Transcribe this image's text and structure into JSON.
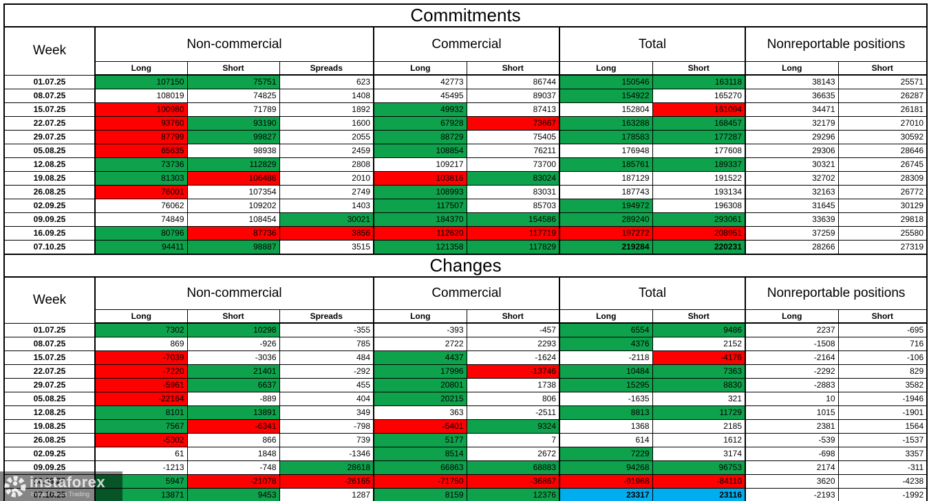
{
  "colors": {
    "green": "#0FA24C",
    "red": "#FF0000",
    "blue": "#00AEEF",
    "grid": "#000000",
    "background": "#FFFFFF"
  },
  "columns": {
    "week_label": "Week",
    "groups": [
      {
        "label": "Non-commercial",
        "subs": [
          "Long",
          "Short",
          "Spreads"
        ]
      },
      {
        "label": "Commercial",
        "subs": [
          "Long",
          "Short"
        ]
      },
      {
        "label": "Total",
        "subs": [
          "Long",
          "Short"
        ]
      },
      {
        "label": "Nonreportable positions",
        "subs": [
          "Long",
          "Short"
        ]
      }
    ]
  },
  "chart_data": [
    {
      "type": "table",
      "title": "Commitments",
      "columns": [
        "Week",
        "Non-commercial Long",
        "Non-commercial Short",
        "Non-commercial Spreads",
        "Commercial Long",
        "Commercial Short",
        "Total Long",
        "Total Short",
        "Nonreportable Long",
        "Nonreportable Short"
      ],
      "highlight_legend": "cell codes: g=green fill, r=red fill, b=blue fill, third element 1 = bold",
      "rows": [
        {
          "week": "01.07.25",
          "cells": [
            [
              107150,
              "g"
            ],
            [
              75751,
              "g"
            ],
            [
              623
            ],
            [
              42773
            ],
            [
              86744
            ],
            [
              150546,
              "g"
            ],
            [
              163118,
              "g"
            ],
            [
              38143
            ],
            [
              25571
            ]
          ]
        },
        {
          "week": "08.07.25",
          "cells": [
            [
              108019
            ],
            [
              74825
            ],
            [
              1408
            ],
            [
              45495
            ],
            [
              89037
            ],
            [
              154922,
              "g"
            ],
            [
              165270
            ],
            [
              36635
            ],
            [
              26287
            ]
          ]
        },
        {
          "week": "15.07.25",
          "cells": [
            [
              100980,
              "r"
            ],
            [
              71789
            ],
            [
              1892
            ],
            [
              49932,
              "g"
            ],
            [
              87413
            ],
            [
              152804
            ],
            [
              161094,
              "r"
            ],
            [
              34471
            ],
            [
              26181
            ]
          ]
        },
        {
          "week": "22.07.25",
          "cells": [
            [
              93760,
              "r"
            ],
            [
              93190,
              "g"
            ],
            [
              1600
            ],
            [
              67928,
              "g"
            ],
            [
              73667,
              "r"
            ],
            [
              163288,
              "g"
            ],
            [
              168457,
              "g"
            ],
            [
              32179
            ],
            [
              27010
            ]
          ]
        },
        {
          "week": "29.07.25",
          "cells": [
            [
              87799,
              "r"
            ],
            [
              99827,
              "g"
            ],
            [
              2055
            ],
            [
              88729,
              "g"
            ],
            [
              75405
            ],
            [
              178583,
              "g"
            ],
            [
              177287,
              "g"
            ],
            [
              29296
            ],
            [
              30592
            ]
          ]
        },
        {
          "week": "05.08.25",
          "cells": [
            [
              65635,
              "r"
            ],
            [
              98938
            ],
            [
              2459
            ],
            [
              108854,
              "g"
            ],
            [
              76211
            ],
            [
              176948
            ],
            [
              177608
            ],
            [
              29306
            ],
            [
              28646
            ]
          ]
        },
        {
          "week": "12.08.25",
          "cells": [
            [
              73736,
              "g"
            ],
            [
              112829,
              "g"
            ],
            [
              2808
            ],
            [
              109217
            ],
            [
              73700
            ],
            [
              185761,
              "g"
            ],
            [
              189337,
              "g"
            ],
            [
              30321
            ],
            [
              26745
            ]
          ]
        },
        {
          "week": "19.08.25",
          "cells": [
            [
              81303,
              "g"
            ],
            [
              106488,
              "r"
            ],
            [
              2010
            ],
            [
              103816,
              "r"
            ],
            [
              83024,
              "g"
            ],
            [
              187129
            ],
            [
              191522
            ],
            [
              32702
            ],
            [
              28309
            ]
          ]
        },
        {
          "week": "26.08.25",
          "cells": [
            [
              76001,
              "r"
            ],
            [
              107354
            ],
            [
              2749
            ],
            [
              108993,
              "g"
            ],
            [
              83031
            ],
            [
              187743
            ],
            [
              193134
            ],
            [
              32163
            ],
            [
              26772
            ]
          ]
        },
        {
          "week": "02.09.25",
          "cells": [
            [
              76062
            ],
            [
              109202
            ],
            [
              1403
            ],
            [
              117507,
              "g"
            ],
            [
              85703
            ],
            [
              194972,
              "g"
            ],
            [
              196308
            ],
            [
              31645
            ],
            [
              30129
            ]
          ]
        },
        {
          "week": "09.09.25",
          "cells": [
            [
              74849
            ],
            [
              108454
            ],
            [
              30021,
              "g"
            ],
            [
              184370,
              "g"
            ],
            [
              154586,
              "g"
            ],
            [
              289240,
              "g"
            ],
            [
              293061,
              "g"
            ],
            [
              33639
            ],
            [
              29818
            ]
          ]
        },
        {
          "week": "16.09.25",
          "cells": [
            [
              80796,
              "g"
            ],
            [
              87736,
              "r"
            ],
            [
              3856,
              "r"
            ],
            [
              112620,
              "r"
            ],
            [
              117719,
              "r"
            ],
            [
              197272,
              "r"
            ],
            [
              208951,
              "r"
            ],
            [
              37259
            ],
            [
              25580
            ]
          ]
        },
        {
          "week": "07.10.25",
          "cells": [
            [
              94411,
              "g"
            ],
            [
              98887,
              "g"
            ],
            [
              3515
            ],
            [
              121358,
              "g"
            ],
            [
              117829,
              "g"
            ],
            [
              219284,
              "g",
              1
            ],
            [
              220231,
              "g",
              1
            ],
            [
              28266
            ],
            [
              27319
            ]
          ]
        }
      ]
    },
    {
      "type": "table",
      "title": "Changes",
      "columns": [
        "Week",
        "Non-commercial Long",
        "Non-commercial Short",
        "Non-commercial Spreads",
        "Commercial Long",
        "Commercial Short",
        "Total Long",
        "Total Short",
        "Nonreportable Long",
        "Nonreportable Short"
      ],
      "rows": [
        {
          "week": "01.07.25",
          "cells": [
            [
              7302,
              "g"
            ],
            [
              10298,
              "g"
            ],
            [
              -355
            ],
            [
              -393
            ],
            [
              -457
            ],
            [
              6554,
              "g"
            ],
            [
              9486,
              "g"
            ],
            [
              2237
            ],
            [
              -695
            ]
          ]
        },
        {
          "week": "08.07.25",
          "cells": [
            [
              869
            ],
            [
              -926
            ],
            [
              785
            ],
            [
              2722
            ],
            [
              2293
            ],
            [
              4376,
              "g"
            ],
            [
              2152
            ],
            [
              -1508
            ],
            [
              716
            ]
          ]
        },
        {
          "week": "15.07.25",
          "cells": [
            [
              -7039,
              "r"
            ],
            [
              -3036
            ],
            [
              484
            ],
            [
              4437,
              "g"
            ],
            [
              -1624
            ],
            [
              -2118
            ],
            [
              -4176,
              "r"
            ],
            [
              -2164
            ],
            [
              -106
            ]
          ]
        },
        {
          "week": "22.07.25",
          "cells": [
            [
              -7220,
              "r"
            ],
            [
              21401,
              "g"
            ],
            [
              -292
            ],
            [
              17996,
              "g"
            ],
            [
              -13746,
              "r"
            ],
            [
              10484,
              "g"
            ],
            [
              7363,
              "g"
            ],
            [
              -2292
            ],
            [
              829
            ]
          ]
        },
        {
          "week": "29.07.25",
          "cells": [
            [
              -5961,
              "r"
            ],
            [
              6637,
              "g"
            ],
            [
              455
            ],
            [
              20801,
              "g"
            ],
            [
              1738
            ],
            [
              15295,
              "g"
            ],
            [
              8830,
              "g"
            ],
            [
              -2883
            ],
            [
              3582
            ]
          ]
        },
        {
          "week": "05.08.25",
          "cells": [
            [
              -22164,
              "r"
            ],
            [
              -889
            ],
            [
              404
            ],
            [
              20215,
              "g"
            ],
            [
              806
            ],
            [
              -1635
            ],
            [
              321
            ],
            [
              10
            ],
            [
              -1946
            ]
          ]
        },
        {
          "week": "12.08.25",
          "cells": [
            [
              8101,
              "g"
            ],
            [
              13891,
              "g"
            ],
            [
              349
            ],
            [
              363
            ],
            [
              -2511
            ],
            [
              8813,
              "g"
            ],
            [
              11729,
              "g"
            ],
            [
              1015
            ],
            [
              -1901
            ]
          ]
        },
        {
          "week": "19.08.25",
          "cells": [
            [
              7567,
              "g"
            ],
            [
              -6341,
              "r"
            ],
            [
              -798
            ],
            [
              -5401,
              "r"
            ],
            [
              9324,
              "g"
            ],
            [
              1368
            ],
            [
              2185
            ],
            [
              2381
            ],
            [
              1564
            ]
          ]
        },
        {
          "week": "26.08.25",
          "cells": [
            [
              -5302,
              "r"
            ],
            [
              866
            ],
            [
              739
            ],
            [
              5177,
              "g"
            ],
            [
              7
            ],
            [
              614
            ],
            [
              1612
            ],
            [
              -539
            ],
            [
              -1537
            ]
          ]
        },
        {
          "week": "02.09.25",
          "cells": [
            [
              61
            ],
            [
              1848
            ],
            [
              -1346
            ],
            [
              8514,
              "g"
            ],
            [
              2672
            ],
            [
              7229,
              "g"
            ],
            [
              3174
            ],
            [
              -698
            ],
            [
              3357
            ]
          ]
        },
        {
          "week": "09.09.25",
          "cells": [
            [
              -1213
            ],
            [
              -748
            ],
            [
              28618,
              "g"
            ],
            [
              66863,
              "g"
            ],
            [
              68883,
              "g"
            ],
            [
              94268,
              "g"
            ],
            [
              96753,
              "g"
            ],
            [
              2174
            ],
            [
              -311
            ]
          ]
        },
        {
          "week": "16.09.25",
          "cells": [
            [
              5947,
              "g"
            ],
            [
              -21078,
              "r"
            ],
            [
              -26165,
              "r"
            ],
            [
              -71750,
              "r"
            ],
            [
              -36867,
              "r"
            ],
            [
              -91968,
              "r"
            ],
            [
              -84110,
              "r"
            ],
            [
              3620
            ],
            [
              -4238
            ]
          ]
        },
        {
          "week": "07.10.25",
          "cells": [
            [
              13871,
              "g"
            ],
            [
              9453,
              "g"
            ],
            [
              1287
            ],
            [
              8159,
              "g"
            ],
            [
              12376,
              "g"
            ],
            [
              23317,
              "b",
              1
            ],
            [
              23116,
              "b",
              1
            ],
            [
              -2193
            ],
            [
              -1992
            ]
          ]
        }
      ]
    }
  ],
  "watermark": {
    "brand": "instaforex",
    "tagline": "Instant Forex Trading",
    "icon": "gear-icon"
  }
}
